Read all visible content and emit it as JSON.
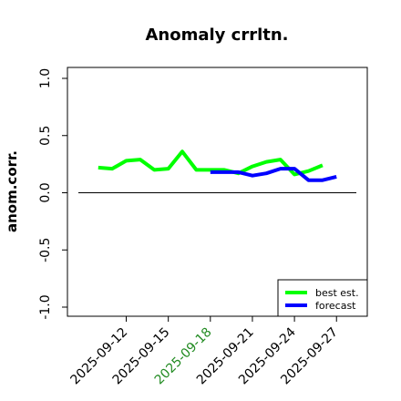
{
  "chart_data": {
    "type": "line",
    "title": "Anomaly crrltn.",
    "ylabel": "anom.corr.",
    "xlabel": "",
    "ylim": [
      -1.0,
      1.0
    ],
    "yticks": [
      "-1.0",
      "-0.5",
      "0.0",
      "0.5",
      "1.0"
    ],
    "xticks": [
      {
        "label": "2025-09-12",
        "color": "#000000"
      },
      {
        "label": "2025-09-15",
        "color": "#000000"
      },
      {
        "label": "2025-09-18",
        "color": "#228b22"
      },
      {
        "label": "2025-09-21",
        "color": "#000000"
      },
      {
        "label": "2025-09-24",
        "color": "#000000"
      },
      {
        "label": "2025-09-27",
        "color": "#000000"
      }
    ],
    "xlim": [
      "2025-09-08",
      "2025-09-29"
    ],
    "reference_line": 0.0,
    "grid": false,
    "legend_position": "bottom-right",
    "series": [
      {
        "name": "best est.",
        "color": "#00ff00",
        "x": [
          "2025-09-10",
          "2025-09-11",
          "2025-09-12",
          "2025-09-13",
          "2025-09-14",
          "2025-09-15",
          "2025-09-16",
          "2025-09-17",
          "2025-09-18",
          "2025-09-19",
          "2025-09-20",
          "2025-09-21",
          "2025-09-22",
          "2025-09-23",
          "2025-09-24",
          "2025-09-25",
          "2025-09-26",
          "2025-09-27"
        ],
        "values": [
          0.22,
          0.21,
          0.28,
          0.29,
          0.2,
          0.21,
          0.36,
          0.2,
          0.2,
          0.2,
          0.17,
          0.23,
          0.27,
          0.29,
          0.16,
          0.19,
          0.24,
          null
        ]
      },
      {
        "name": "forecast",
        "color": "#0000ff",
        "x": [
          "2025-09-18",
          "2025-09-19",
          "2025-09-20",
          "2025-09-21",
          "2025-09-22",
          "2025-09-23",
          "2025-09-24",
          "2025-09-25",
          "2025-09-26",
          "2025-09-27"
        ],
        "values": [
          0.18,
          0.18,
          0.18,
          0.15,
          0.17,
          0.21,
          0.21,
          0.11,
          0.11,
          0.14
        ]
      }
    ]
  }
}
